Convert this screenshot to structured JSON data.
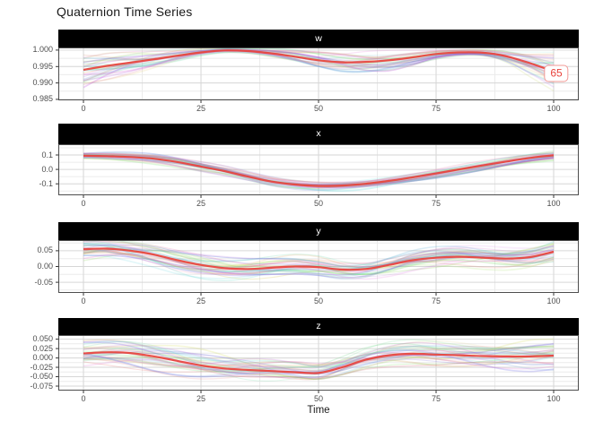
{
  "title": "Quaternion Time Series",
  "colors": {
    "background": "#ffffff",
    "strip_bg": "#000000",
    "strip_text": "#ffffff",
    "grid_major": "#d6d6d6",
    "grid_minor": "#ebebeb",
    "panel_border": "#4d4d4d",
    "tick_mark": "#333333",
    "axis_text": "#4d4d4d",
    "title_text": "#191919",
    "highlight": "#e8433c",
    "annotation_border": "#f29895",
    "annotation_text": "#e8433c"
  },
  "chart_data": {
    "type": "line",
    "title": "Quaternion Time Series",
    "xlabel": "Time",
    "x": [
      0,
      5,
      10,
      15,
      20,
      25,
      30,
      35,
      40,
      45,
      50,
      55,
      60,
      65,
      70,
      75,
      80,
      85,
      90,
      95,
      100
    ],
    "xlim": [
      -5.34,
      105.34
    ],
    "x_ticks": [
      {
        "label": "0",
        "value": 0
      },
      {
        "label": "25",
        "value": 25
      },
      {
        "label": "50",
        "value": 50
      },
      {
        "label": "75",
        "value": 75
      },
      {
        "label": "100",
        "value": 100
      }
    ],
    "facets": [
      {
        "label": "w",
        "ylim": [
          0.9847,
          1.0008
        ],
        "y_ticks": [
          {
            "label": "1.000",
            "value": 1.0
          },
          {
            "label": "0.995",
            "value": 0.995
          },
          {
            "label": "0.990",
            "value": 0.99
          },
          {
            "label": "0.985",
            "value": 0.985
          }
        ],
        "highlight": [
          0.994,
          0.9952,
          0.9962,
          0.9972,
          0.9983,
          0.9993,
          0.9999,
          0.9997,
          0.999,
          0.998,
          0.9969,
          0.9963,
          0.9964,
          0.9969,
          0.9978,
          0.9988,
          0.9993,
          0.9992,
          0.9981,
          0.996,
          0.9935
        ],
        "spread": 0.0055,
        "converge_to_one": true
      },
      {
        "label": "x",
        "ylim": [
          -0.18,
          0.175
        ],
        "y_ticks": [
          {
            "label": "0.1",
            "value": 0.1
          },
          {
            "label": "0.0",
            "value": 0.0
          },
          {
            "label": "-0.1",
            "value": -0.1
          }
        ],
        "highlight": [
          0.095,
          0.092,
          0.086,
          0.074,
          0.051,
          0.02,
          -0.012,
          -0.05,
          -0.085,
          -0.105,
          -0.115,
          -0.112,
          -0.1,
          -0.08,
          -0.055,
          -0.028,
          0.001,
          0.028,
          0.055,
          0.08,
          0.098
        ],
        "spread": 0.032,
        "converge_to_one": false
      },
      {
        "label": "y",
        "ylim": [
          -0.084,
          0.084
        ],
        "y_ticks": [
          {
            "label": "0.05",
            "value": 0.05
          },
          {
            "label": "0.00",
            "value": 0.0
          },
          {
            "label": "-0.05",
            "value": -0.05
          }
        ],
        "highlight": [
          0.055,
          0.057,
          0.05,
          0.038,
          0.02,
          0.005,
          -0.005,
          -0.008,
          -0.004,
          0.0,
          -0.002,
          -0.01,
          -0.008,
          0.005,
          0.02,
          0.028,
          0.031,
          0.028,
          0.025,
          0.03,
          0.047
        ],
        "spread": 0.034,
        "converge_to_one": false
      },
      {
        "label": "z",
        "ylim": [
          -0.087,
          0.061
        ],
        "y_ticks": [
          {
            "label": "0.050",
            "value": 0.05
          },
          {
            "label": "0.025",
            "value": 0.025
          },
          {
            "label": "0.000",
            "value": 0.0
          },
          {
            "label": "-0.025",
            "value": -0.025
          },
          {
            "label": "-0.050",
            "value": -0.05
          },
          {
            "label": "-0.075",
            "value": -0.075
          }
        ],
        "highlight": [
          0.012,
          0.015,
          0.013,
          0.004,
          -0.008,
          -0.02,
          -0.028,
          -0.032,
          -0.035,
          -0.038,
          -0.04,
          -0.025,
          -0.005,
          0.007,
          0.011,
          0.009,
          0.007,
          0.005,
          0.004,
          0.004,
          0.006
        ],
        "spread": 0.032,
        "converge_to_one": false
      }
    ],
    "background_series": {
      "count": 34,
      "alpha": 0.2,
      "seed": 7,
      "palette": "pastel-hue"
    },
    "highlight_series": {
      "id": "65",
      "color": "#e8433c",
      "width": 2.2
    },
    "annotation": {
      "text": "65",
      "facet": "w",
      "x": 100,
      "y": 0.993
    }
  }
}
